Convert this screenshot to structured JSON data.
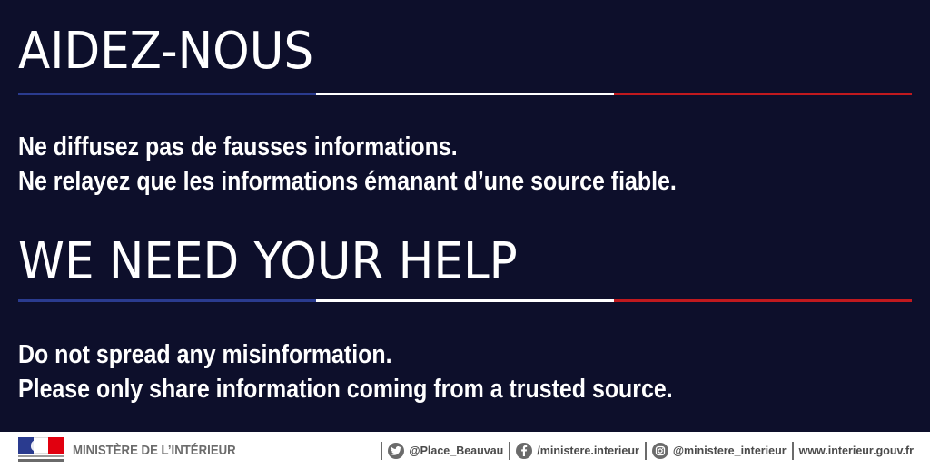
{
  "colors": {
    "background": "#0d0f2b",
    "blue": "#2a3b8f",
    "white": "#ffffff",
    "red": "#c0191e",
    "footer_bg": "#ffffff",
    "footer_text": "#4a4a4a"
  },
  "french": {
    "title": "AIDEZ-NOUS",
    "line1": "Ne diffusez pas de fausses informations.",
    "line2": "Ne relayez que les informations émanant d’une source fiable."
  },
  "english": {
    "title": "WE NEED YOUR HELP",
    "line1": "Do not spread any misinformation.",
    "line2": "Please only share information coming from a trusted source."
  },
  "footer": {
    "logo": "marianne-logo",
    "ministry": "MINISTÈRE DE L’INTÉRIEUR",
    "twitter_icon": "twitter-icon",
    "twitter": "@Place_Beauvau",
    "facebook_icon": "facebook-icon",
    "facebook": "/ministere.interieur",
    "instagram_icon": "instagram-icon",
    "instagram": "@ministere_interieur",
    "website": "www.interieur.gouv.fr"
  }
}
